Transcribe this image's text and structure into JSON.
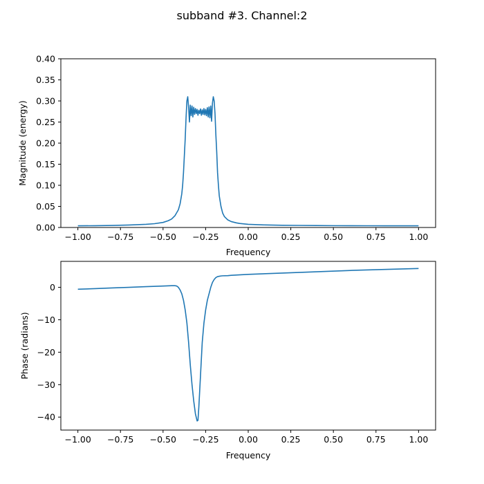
{
  "figure": {
    "title": "subband #3. Channel:2"
  },
  "chart_data": [
    {
      "type": "line",
      "xlabel": "Frequency",
      "ylabel": "Magnitude (energy)",
      "xlim": [
        -1.1,
        1.1
      ],
      "ylim": [
        0.0,
        0.4
      ],
      "xticks": [
        -1.0,
        -0.75,
        -0.5,
        -0.25,
        0.0,
        0.25,
        0.5,
        0.75,
        1.0
      ],
      "xtick_labels": [
        "−1.00",
        "−0.75",
        "−0.50",
        "−0.25",
        "0.00",
        "0.25",
        "0.50",
        "0.75",
        "1.00"
      ],
      "yticks": [
        0.0,
        0.05,
        0.1,
        0.15,
        0.2,
        0.25,
        0.3,
        0.35,
        0.4
      ],
      "ytick_labels": [
        "0.00",
        "0.05",
        "0.10",
        "0.15",
        "0.20",
        "0.25",
        "0.30",
        "0.35",
        "0.40"
      ],
      "grid": false,
      "color": "#1f77b4",
      "series": [
        {
          "x": [
            -1.0,
            -0.9,
            -0.8,
            -0.7,
            -0.6,
            -0.55,
            -0.5,
            -0.47,
            -0.45,
            -0.43,
            -0.41,
            -0.4,
            -0.39,
            -0.385,
            -0.38,
            -0.375,
            -0.37,
            -0.365,
            -0.36,
            -0.355,
            -0.35,
            -0.345,
            -0.34,
            -0.335,
            -0.33,
            -0.325,
            -0.32,
            -0.315,
            -0.31,
            -0.305,
            -0.3,
            -0.295,
            -0.29,
            -0.285,
            -0.28,
            -0.275,
            -0.27,
            -0.265,
            -0.26,
            -0.255,
            -0.25,
            -0.245,
            -0.24,
            -0.235,
            -0.23,
            -0.225,
            -0.22,
            -0.215,
            -0.21,
            -0.205,
            -0.2,
            -0.195,
            -0.19,
            -0.185,
            -0.18,
            -0.175,
            -0.17,
            -0.16,
            -0.15,
            -0.14,
            -0.12,
            -0.1,
            -0.07,
            -0.05,
            0.0,
            0.1,
            0.2,
            0.3,
            0.4,
            0.5,
            0.6,
            0.7,
            0.8,
            0.9,
            1.0
          ],
          "y": [
            0.004,
            0.0042,
            0.0048,
            0.0058,
            0.0075,
            0.009,
            0.012,
            0.016,
            0.02,
            0.028,
            0.042,
            0.056,
            0.08,
            0.1,
            0.13,
            0.17,
            0.21,
            0.26,
            0.3,
            0.31,
            0.285,
            0.25,
            0.29,
            0.265,
            0.288,
            0.262,
            0.285,
            0.268,
            0.282,
            0.27,
            0.28,
            0.266,
            0.278,
            0.27,
            0.281,
            0.266,
            0.279,
            0.268,
            0.282,
            0.267,
            0.28,
            0.265,
            0.284,
            0.262,
            0.286,
            0.26,
            0.288,
            0.252,
            0.295,
            0.31,
            0.3,
            0.27,
            0.22,
            0.18,
            0.13,
            0.1,
            0.075,
            0.05,
            0.034,
            0.026,
            0.018,
            0.014,
            0.011,
            0.0095,
            0.0075,
            0.006,
            0.0053,
            0.0049,
            0.0046,
            0.0043,
            0.0042,
            0.0041,
            0.004,
            0.004,
            0.004
          ]
        }
      ]
    },
    {
      "type": "line",
      "xlabel": "Frequency",
      "ylabel": "Phase (radians)",
      "xlim": [
        -1.1,
        1.1
      ],
      "ylim": [
        -44.0,
        8.0
      ],
      "xticks": [
        -1.0,
        -0.75,
        -0.5,
        -0.25,
        0.0,
        0.25,
        0.5,
        0.75,
        1.0
      ],
      "xtick_labels": [
        "−1.00",
        "−0.75",
        "−0.50",
        "−0.25",
        "0.00",
        "0.25",
        "0.50",
        "0.75",
        "1.00"
      ],
      "yticks": [
        -40,
        -30,
        -20,
        -10,
        0
      ],
      "ytick_labels": [
        "−40",
        "−30",
        "−20",
        "−10",
        "0"
      ],
      "grid": false,
      "color": "#1f77b4",
      "series": [
        {
          "x": [
            -1.0,
            -0.9,
            -0.8,
            -0.7,
            -0.6,
            -0.5,
            -0.45,
            -0.43,
            -0.42,
            -0.41,
            -0.4,
            -0.39,
            -0.38,
            -0.37,
            -0.36,
            -0.35,
            -0.34,
            -0.33,
            -0.32,
            -0.31,
            -0.3,
            -0.295,
            -0.29,
            -0.285,
            -0.28,
            -0.275,
            -0.27,
            -0.26,
            -0.25,
            -0.24,
            -0.23,
            -0.22,
            -0.21,
            -0.2,
            -0.19,
            -0.18,
            -0.17,
            -0.16,
            -0.15,
            -0.12,
            -0.1,
            0.0,
            0.2,
            0.4,
            0.6,
            0.8,
            1.0
          ],
          "y": [
            -0.6,
            -0.4,
            -0.2,
            0.0,
            0.2,
            0.4,
            0.5,
            0.5,
            0.4,
            0.0,
            -0.8,
            -2.0,
            -4.0,
            -7.0,
            -11.0,
            -17.0,
            -24.0,
            -30.0,
            -35.0,
            -39.0,
            -41.2,
            -41.0,
            -37.0,
            -32.0,
            -27.0,
            -22.0,
            -17.0,
            -11.0,
            -7.0,
            -4.0,
            -2.0,
            0.0,
            1.5,
            2.4,
            3.0,
            3.3,
            3.4,
            3.5,
            3.55,
            3.6,
            3.7,
            4.0,
            4.4,
            4.8,
            5.2,
            5.5,
            5.8
          ]
        }
      ]
    }
  ]
}
